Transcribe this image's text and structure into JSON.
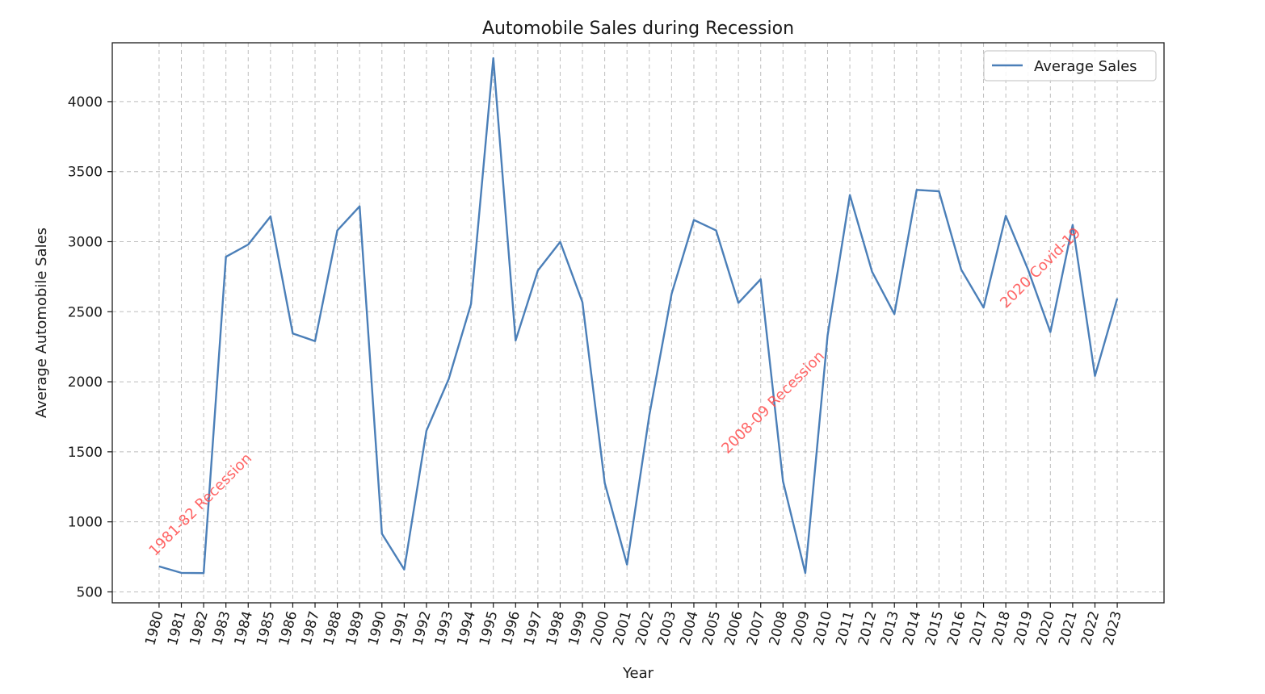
{
  "chart_data": {
    "type": "line",
    "title": "Automobile Sales during Recession",
    "xlabel": "Year",
    "ylabel": "Average Automobile Sales",
    "x": [
      1980,
      1981,
      1982,
      1983,
      1984,
      1985,
      1986,
      1987,
      1988,
      1989,
      1990,
      1991,
      1992,
      1993,
      1994,
      1995,
      1996,
      1997,
      1998,
      1999,
      2000,
      2001,
      2002,
      2003,
      2004,
      2005,
      2006,
      2007,
      2008,
      2009,
      2010,
      2011,
      2012,
      2013,
      2014,
      2015,
      2016,
      2017,
      2018,
      2019,
      2020,
      2021,
      2022,
      2023
    ],
    "series": [
      {
        "name": "Average Sales",
        "color": "#4b7fb8",
        "values": [
          682,
          636,
          634,
          2892,
          2980,
          3180,
          2345,
          2290,
          3080,
          3252,
          915,
          660,
          1650,
          2020,
          2555,
          4310,
          2295,
          2795,
          2998,
          2568,
          1278,
          695,
          1760,
          2627,
          3155,
          3080,
          2563,
          2732,
          1290,
          635,
          2330,
          3333,
          2785,
          2483,
          3370,
          3360,
          2800,
          2530,
          3185,
          2800,
          2355,
          3120,
          2042,
          2595
        ]
      }
    ],
    "ylim": [
      422,
      4420
    ],
    "xlim": [
      1977.9,
      2025.1
    ],
    "yticks": [
      500,
      1000,
      1500,
      2000,
      2500,
      3000,
      3500,
      4000
    ],
    "grid": true,
    "legend_position": "top-right",
    "annotations": [
      {
        "text": "1981-82 Recession",
        "x": 1982,
        "y": 1100,
        "color": "#ff4a4a"
      },
      {
        "text": "2008-09 Recession",
        "x": 2007.7,
        "y": 1830,
        "color": "#ff4a4a"
      },
      {
        "text": "2020 Covid-19",
        "x": 2019.7,
        "y": 2790,
        "color": "#ff4a4a"
      }
    ]
  }
}
